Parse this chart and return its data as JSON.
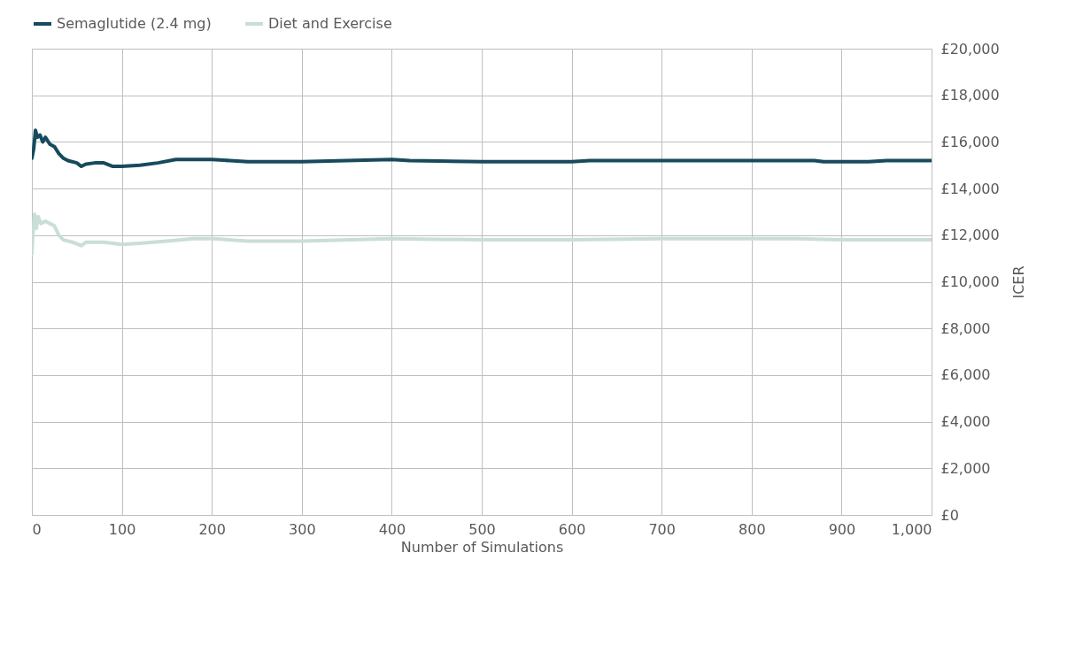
{
  "chart_data": {
    "type": "line",
    "xlabel": "Number of Simulations",
    "ylabel": "ICER",
    "xlim": [
      0,
      1000
    ],
    "ylim": [
      0,
      20000
    ],
    "xticks": [
      0,
      100,
      200,
      300,
      400,
      500,
      600,
      700,
      800,
      900,
      {
        "value": 1000,
        "label": "1,000"
      }
    ],
    "yticks": [
      {
        "value": 0,
        "label": "£0"
      },
      {
        "value": 2000,
        "label": "£2,000"
      },
      {
        "value": 4000,
        "label": "£4,000"
      },
      {
        "value": 6000,
        "label": "£6,000"
      },
      {
        "value": 8000,
        "label": "£8,000"
      },
      {
        "value": 10000,
        "label": "£10,000"
      },
      {
        "value": 12000,
        "label": "£12,000"
      },
      {
        "value": 14000,
        "label": "£14,000"
      },
      {
        "value": 16000,
        "label": "£16,000"
      },
      {
        "value": 18000,
        "label": "£18,000"
      },
      {
        "value": 20000,
        "label": "£20,000"
      }
    ],
    "grid": true,
    "legend": "top",
    "marker": "none",
    "line_style": "solid",
    "series": [
      {
        "name": "Semaglutide (2.4 mg)",
        "color": "#174a5c",
        "x": [
          0,
          2,
          4,
          6,
          9,
          12,
          15,
          20,
          25,
          30,
          35,
          40,
          50,
          55,
          60,
          70,
          80,
          90,
          100,
          120,
          140,
          160,
          180,
          200,
          220,
          240,
          300,
          350,
          400,
          420,
          500,
          600,
          620,
          870,
          880,
          930,
          950,
          1000
        ],
        "values": [
          15300,
          15700,
          16500,
          16200,
          16300,
          16000,
          16200,
          15900,
          15800,
          15500,
          15300,
          15200,
          15100,
          14950,
          15050,
          15100,
          15100,
          14950,
          14950,
          15000,
          15100,
          15250,
          15250,
          15250,
          15200,
          15150,
          15150,
          15200,
          15250,
          15200,
          15150,
          15150,
          15200,
          15200,
          15150,
          15150,
          15200,
          15200
        ]
      },
      {
        "name": "Diet and Exercise",
        "color": "#c9ded8",
        "x": [
          0,
          1,
          3,
          5,
          7,
          10,
          15,
          20,
          25,
          30,
          35,
          45,
          55,
          60,
          70,
          80,
          100,
          120,
          150,
          180,
          200,
          240,
          300,
          400,
          500,
          600,
          700,
          850,
          900,
          1000
        ],
        "values": [
          11200,
          12000,
          12900,
          12300,
          12800,
          12500,
          12600,
          12500,
          12400,
          12000,
          11800,
          11700,
          11550,
          11700,
          11700,
          11700,
          11600,
          11650,
          11750,
          11850,
          11850,
          11750,
          11750,
          11850,
          11800,
          11800,
          11850,
          11850,
          11800,
          11800
        ]
      }
    ]
  }
}
